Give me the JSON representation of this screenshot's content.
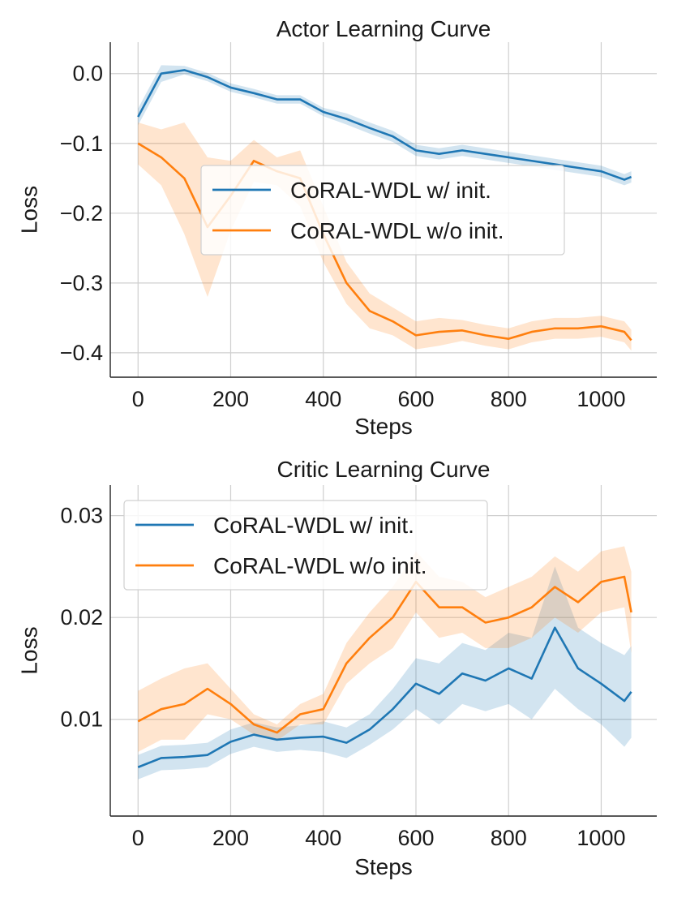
{
  "chart_data": [
    {
      "type": "line",
      "title": "Actor Learning Curve",
      "xlabel": "Steps",
      "ylabel": "Loss",
      "xlim": [
        -60,
        1120
      ],
      "ylim": [
        -0.435,
        0.045
      ],
      "xticks": [
        0,
        200,
        400,
        600,
        800,
        1000
      ],
      "xtick_labels": [
        "0",
        "200",
        "400",
        "600",
        "800",
        "1000"
      ],
      "yticks": [
        0.0,
        -0.1,
        -0.2,
        -0.3,
        -0.4
      ],
      "ytick_labels": [
        "0.0",
        "−0.1",
        "−0.2",
        "−0.3",
        "−0.4"
      ],
      "grid": true,
      "legend": "center-right",
      "x": [
        0,
        50,
        100,
        150,
        200,
        250,
        300,
        350,
        400,
        450,
        500,
        550,
        600,
        650,
        700,
        750,
        800,
        850,
        900,
        950,
        1000,
        1050,
        1065
      ],
      "series": [
        {
          "name": "CoRAL-WDL w/ init.",
          "color": "#1f77b4",
          "values": [
            -0.062,
            0.0,
            0.005,
            -0.005,
            -0.02,
            -0.028,
            -0.037,
            -0.037,
            -0.055,
            -0.065,
            -0.078,
            -0.09,
            -0.11,
            -0.115,
            -0.11,
            -0.115,
            -0.12,
            -0.125,
            -0.13,
            -0.135,
            -0.14,
            -0.152,
            -0.148
          ],
          "band": [
            0.012,
            0.012,
            0.006,
            0.006,
            0.006,
            0.006,
            0.006,
            0.006,
            0.006,
            0.008,
            0.008,
            0.008,
            0.008,
            0.008,
            0.008,
            0.008,
            0.008,
            0.008,
            0.008,
            0.008,
            0.008,
            0.008,
            0.008
          ]
        },
        {
          "name": "CoRAL-WDL w/o init.",
          "color": "#ff7f0e",
          "values": [
            -0.1,
            -0.12,
            -0.15,
            -0.22,
            -0.175,
            -0.125,
            -0.14,
            -0.15,
            -0.23,
            -0.3,
            -0.34,
            -0.355,
            -0.375,
            -0.37,
            -0.368,
            -0.375,
            -0.38,
            -0.37,
            -0.365,
            -0.365,
            -0.362,
            -0.37,
            -0.382
          ],
          "band": [
            0.03,
            0.04,
            0.08,
            0.1,
            0.05,
            0.03,
            0.02,
            0.04,
            0.04,
            0.03,
            0.025,
            0.02,
            0.02,
            0.02,
            0.015,
            0.015,
            0.015,
            0.015,
            0.015,
            0.015,
            0.015,
            0.015,
            0.015
          ]
        }
      ]
    },
    {
      "type": "line",
      "title": "Critic Learning Curve",
      "xlabel": "Steps",
      "ylabel": "Loss",
      "xlim": [
        -60,
        1120
      ],
      "ylim": [
        0.0005,
        0.033
      ],
      "xticks": [
        0,
        200,
        400,
        600,
        800,
        1000
      ],
      "xtick_labels": [
        "0",
        "200",
        "400",
        "600",
        "800",
        "1000"
      ],
      "yticks": [
        0.01,
        0.02,
        0.03
      ],
      "ytick_labels": [
        "0.01",
        "0.02",
        "0.03"
      ],
      "grid": true,
      "legend": "top-left",
      "x": [
        0,
        50,
        100,
        150,
        200,
        250,
        300,
        350,
        400,
        450,
        500,
        550,
        600,
        650,
        700,
        750,
        800,
        850,
        900,
        950,
        1000,
        1050,
        1065
      ],
      "series": [
        {
          "name": "CoRAL-WDL w/ init.",
          "color": "#1f77b4",
          "values": [
            0.0053,
            0.0062,
            0.0063,
            0.0065,
            0.0078,
            0.0085,
            0.008,
            0.0082,
            0.0083,
            0.0077,
            0.009,
            0.011,
            0.0135,
            0.0125,
            0.0145,
            0.0138,
            0.015,
            0.014,
            0.019,
            0.015,
            0.0135,
            0.0118,
            0.0127
          ],
          "band": [
            0.0012,
            0.0012,
            0.0012,
            0.0012,
            0.0012,
            0.0012,
            0.0012,
            0.0012,
            0.0015,
            0.0015,
            0.0015,
            0.002,
            0.0025,
            0.003,
            0.003,
            0.003,
            0.0035,
            0.004,
            0.006,
            0.004,
            0.004,
            0.0045,
            0.0045
          ]
        },
        {
          "name": "CoRAL-WDL w/o init.",
          "color": "#ff7f0e",
          "values": [
            0.0098,
            0.011,
            0.0115,
            0.013,
            0.0115,
            0.0095,
            0.0087,
            0.0105,
            0.011,
            0.0155,
            0.018,
            0.02,
            0.0235,
            0.021,
            0.021,
            0.0195,
            0.02,
            0.021,
            0.023,
            0.0215,
            0.0235,
            0.024,
            0.0205
          ],
          "band": [
            0.003,
            0.003,
            0.0035,
            0.0025,
            0.0015,
            0.001,
            0.0008,
            0.001,
            0.0015,
            0.002,
            0.0025,
            0.003,
            0.003,
            0.003,
            0.0025,
            0.0025,
            0.003,
            0.003,
            0.003,
            0.003,
            0.003,
            0.003,
            0.004
          ]
        }
      ]
    }
  ]
}
